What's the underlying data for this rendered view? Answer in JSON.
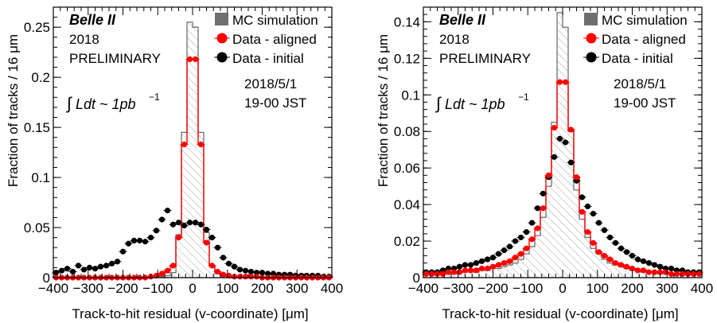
{
  "chart_data": [
    {
      "type": "histogram",
      "xlabel": "Track-to-hit residual (v-coordinate) [μm]",
      "ylabel": "Fraction of tracks / 16 μm",
      "xlim": [
        -400,
        400
      ],
      "ylim": [
        0,
        0.27
      ],
      "xticks": [
        "−400",
        "−300",
        "−200",
        "−100",
        "0",
        "100",
        "200",
        "300",
        "400"
      ],
      "yticks": [
        "0",
        "0.05",
        "0.1",
        "0.15",
        "0.2",
        "0.25"
      ],
      "ytick_values": [
        0,
        0.05,
        0.1,
        0.15,
        0.2,
        0.25
      ],
      "annotations": {
        "experiment": "Belle II",
        "year": "2018",
        "status": "PRELIMINARY",
        "luminosity_integral": "∫",
        "luminosity_text": "Ldt ~ 1pb",
        "luminosity_exp": "−1",
        "date": "2018/5/1",
        "time": "19-00 JST"
      },
      "bin_centers": [
        -392,
        -376,
        -360,
        -344,
        -328,
        -312,
        -296,
        -280,
        -264,
        -248,
        -232,
        -216,
        -200,
        -184,
        -168,
        -152,
        -136,
        -120,
        -104,
        -88,
        -72,
        -56,
        -40,
        -24,
        -8,
        8,
        24,
        40,
        56,
        72,
        88,
        104,
        120,
        136,
        152,
        168,
        184,
        200,
        216,
        232,
        248,
        264,
        280,
        296,
        312,
        328,
        344,
        360,
        376,
        392
      ],
      "series": [
        {
          "name": "MC simulation",
          "kind": "hatched-step",
          "color": "#777777",
          "values": [
            0.0005,
            0.0005,
            0.0005,
            0.0005,
            0.0005,
            0.0005,
            0.0005,
            0.0005,
            0.0005,
            0.0005,
            0.0005,
            0.0005,
            0.0005,
            0.0005,
            0.0005,
            0.0005,
            0.0005,
            0.0005,
            0.0008,
            0.001,
            0.002,
            0.005,
            0.043,
            0.145,
            0.255,
            0.25,
            0.145,
            0.045,
            0.012,
            0.004,
            0.002,
            0.001,
            0.0008,
            0.0005,
            0.0005,
            0.0005,
            0.0005,
            0.0005,
            0.0005,
            0.0005,
            0.0005,
            0.0005,
            0.0005,
            0.0005,
            0.0005,
            0.0005,
            0.0005,
            0.0005,
            0.0005,
            0.0005
          ]
        },
        {
          "name": "Data - aligned",
          "kind": "points-with-step",
          "color": "#ff0000",
          "values": [
            0,
            0,
            0,
            0,
            0,
            0,
            0,
            0,
            0,
            0,
            0,
            0,
            0,
            0,
            0,
            0,
            0,
            0.001,
            0.002,
            0.004,
            0.007,
            0.012,
            0.04,
            0.133,
            0.218,
            0.218,
            0.133,
            0.035,
            0.012,
            0.006,
            0.003,
            0.002,
            0.001,
            0.001,
            0.001,
            0.001,
            0.001,
            0,
            0,
            0,
            0,
            0,
            0,
            0,
            0,
            0,
            0,
            0,
            0,
            0
          ]
        },
        {
          "name": "Data - initial",
          "kind": "points",
          "color": "#000000",
          "values": [
            0.005,
            0.007,
            0.009,
            0.006,
            0.012,
            0.008,
            0.01,
            0.009,
            0.011,
            0.012,
            0.014,
            0.016,
            0.026,
            0.034,
            0.037,
            0.037,
            0.036,
            0.04,
            0.047,
            0.058,
            0.067,
            0.053,
            0.055,
            0.052,
            0.055,
            0.055,
            0.053,
            0.048,
            0.04,
            0.03,
            0.02,
            0.014,
            0.011,
            0.008,
            0.007,
            0.006,
            0.005,
            0.005,
            0.004,
            0.004,
            0.003,
            0.003,
            0.003,
            0.002,
            0.002,
            0.002,
            0.002,
            0.002,
            0.001,
            0.001
          ]
        }
      ]
    },
    {
      "type": "histogram",
      "xlabel": "Track-to-hit residual (v-coordinate) [μm]",
      "ylabel": "Fraction of tracks / 16 μm",
      "xlim": [
        -400,
        400
      ],
      "ylim": [
        0,
        0.148
      ],
      "xticks": [
        "−400",
        "−300",
        "−200",
        "−100",
        "0",
        "100",
        "200",
        "300",
        "400"
      ],
      "yticks": [
        "0",
        "0.02",
        "0.04",
        "0.06",
        "0.08",
        "0.1",
        "0.12",
        "0.14"
      ],
      "ytick_values": [
        0,
        0.02,
        0.04,
        0.06,
        0.08,
        0.1,
        0.12,
        0.14
      ],
      "annotations": {
        "experiment": "Belle II",
        "year": "2018",
        "status": "PRELIMINARY",
        "luminosity_integral": "∫",
        "luminosity_text": "Ldt ~ 1pb",
        "luminosity_exp": "−1",
        "date": "2018/5/1",
        "time": "19-00 JST"
      },
      "bin_centers": [
        -392,
        -376,
        -360,
        -344,
        -328,
        -312,
        -296,
        -280,
        -264,
        -248,
        -232,
        -216,
        -200,
        -184,
        -168,
        -152,
        -136,
        -120,
        -104,
        -88,
        -72,
        -56,
        -40,
        -24,
        -8,
        8,
        24,
        40,
        56,
        72,
        88,
        104,
        120,
        136,
        152,
        168,
        184,
        200,
        216,
        232,
        248,
        264,
        280,
        296,
        312,
        328,
        344,
        360,
        376,
        392
      ],
      "series": [
        {
          "name": "MC simulation",
          "kind": "hatched-step",
          "color": "#777777",
          "values": [
            0.002,
            0.002,
            0.002,
            0.002,
            0.002,
            0.002,
            0.003,
            0.003,
            0.003,
            0.003,
            0.004,
            0.004,
            0.005,
            0.005,
            0.006,
            0.007,
            0.008,
            0.01,
            0.013,
            0.017,
            0.023,
            0.033,
            0.05,
            0.085,
            0.145,
            0.137,
            0.08,
            0.048,
            0.032,
            0.022,
            0.016,
            0.013,
            0.01,
            0.008,
            0.007,
            0.006,
            0.005,
            0.004,
            0.004,
            0.003,
            0.003,
            0.003,
            0.002,
            0.002,
            0.002,
            0.002,
            0.002,
            0.002,
            0.002,
            0.002
          ]
        },
        {
          "name": "Data - aligned",
          "kind": "points-with-step",
          "color": "#ff0000",
          "values": [
            0.002,
            0.002,
            0.002,
            0.002,
            0.003,
            0.003,
            0.003,
            0.004,
            0.004,
            0.004,
            0.005,
            0.005,
            0.006,
            0.007,
            0.008,
            0.009,
            0.011,
            0.013,
            0.016,
            0.021,
            0.027,
            0.038,
            0.056,
            0.082,
            0.107,
            0.107,
            0.081,
            0.055,
            0.036,
            0.025,
            0.019,
            0.014,
            0.012,
            0.01,
            0.008,
            0.007,
            0.006,
            0.005,
            0.004,
            0.004,
            0.003,
            0.003,
            0.003,
            0.003,
            0.002,
            0.002,
            0.002,
            0.002,
            0.002,
            0.002
          ]
        },
        {
          "name": "Data - initial",
          "kind": "points",
          "color": "#000000",
          "values": [
            0.003,
            0.003,
            0.003,
            0.004,
            0.005,
            0.005,
            0.006,
            0.007,
            0.007,
            0.008,
            0.009,
            0.01,
            0.011,
            0.013,
            0.015,
            0.017,
            0.02,
            0.022,
            0.025,
            0.03,
            0.038,
            0.046,
            0.055,
            0.066,
            0.076,
            0.074,
            0.063,
            0.053,
            0.044,
            0.039,
            0.035,
            0.03,
            0.026,
            0.022,
            0.019,
            0.016,
            0.014,
            0.012,
            0.01,
            0.009,
            0.008,
            0.007,
            0.006,
            0.005,
            0.005,
            0.004,
            0.004,
            0.003,
            0.003,
            0.003
          ]
        }
      ]
    }
  ]
}
